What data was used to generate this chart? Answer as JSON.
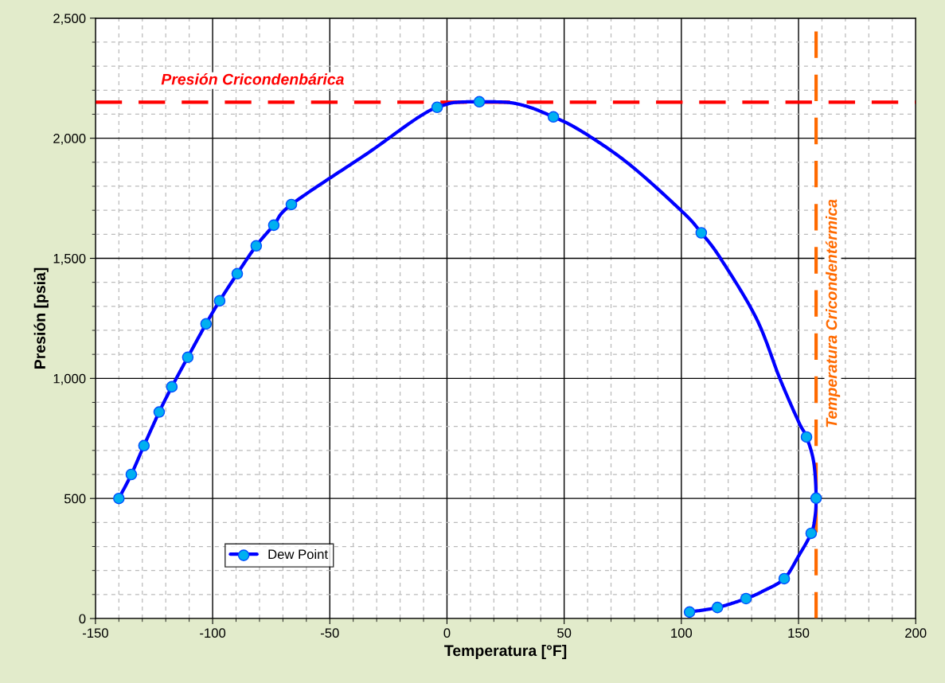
{
  "chart_data": {
    "type": "line",
    "xlabel": "Temperatura [°F]",
    "ylabel": "Presión [psia]",
    "xlim": [
      -150,
      200
    ],
    "ylim": [
      0,
      2500
    ],
    "xticks": [
      -150,
      -100,
      -50,
      0,
      50,
      100,
      150,
      200
    ],
    "yticks": [
      0,
      {
        "value": 500,
        "label": "500"
      },
      {
        "value": 1000,
        "label": "1,000"
      },
      {
        "value": 1500,
        "label": "1,500"
      },
      {
        "value": 2000,
        "label": "2,000"
      },
      {
        "value": 2500,
        "label": "2,500"
      }
    ],
    "grid": true,
    "legend": "bottom left",
    "series": [
      {
        "color": "#0000ff",
        "marker": "none",
        "x": [
          -140,
          -134.7,
          -129.3,
          -122.8,
          -117.4,
          -110.6,
          -102.8,
          -97.0,
          -89.5,
          -81.4,
          -73.9,
          -66.4,
          -35,
          -4.2,
          5,
          13.8,
          25,
          35,
          45.4,
          50,
          75,
          100,
          108.5,
          116.7,
          132,
          142,
          150,
          153.4,
          156.5,
          157.5,
          157,
          155.4,
          150,
          143.9,
          135,
          127.6,
          115.4,
          103.5
        ],
        "values": [
          500,
          600,
          720,
          860,
          965,
          1088,
          1227,
          1323,
          1436,
          1552,
          1638,
          1724,
          1930,
          2129,
          2150,
          2152,
          2150,
          2130,
          2089,
          2069,
          1913,
          1698,
          1606,
          1500,
          1250,
          1000,
          820,
          756,
          650,
          501,
          420,
          355,
          260,
          166,
          115,
          83,
          46,
          27
        ]
      },
      {
        "type": "scatter",
        "name": "Dew Point",
        "color": "#00b0f0",
        "marker": "circle",
        "x": [
          -140,
          -134.7,
          -129.3,
          -122.8,
          -117.4,
          -110.6,
          -102.8,
          -97.0,
          -89.5,
          -81.4,
          -73.9,
          -66.4,
          -4.2,
          13.8,
          45.4,
          108.5,
          153.4,
          157.5,
          155.4,
          143.9,
          127.6,
          115.4,
          103.5
        ],
        "values": [
          500,
          600,
          720,
          860,
          965,
          1088,
          1227,
          1323,
          1436,
          1552,
          1638,
          1724,
          2129,
          2152,
          2089,
          1606,
          756,
          501,
          355,
          166,
          83,
          46,
          27
        ]
      }
    ],
    "ref_lines": [
      {
        "axis": "y",
        "value": 2150,
        "label": "Presión Cricondenbárica",
        "color": "#ff0000",
        "line_style": "dashed"
      },
      {
        "axis": "x",
        "value": 157.5,
        "label": "Temperatura Cricondentérmica",
        "color": "#ff6a00",
        "line_style": "dashed"
      }
    ]
  }
}
